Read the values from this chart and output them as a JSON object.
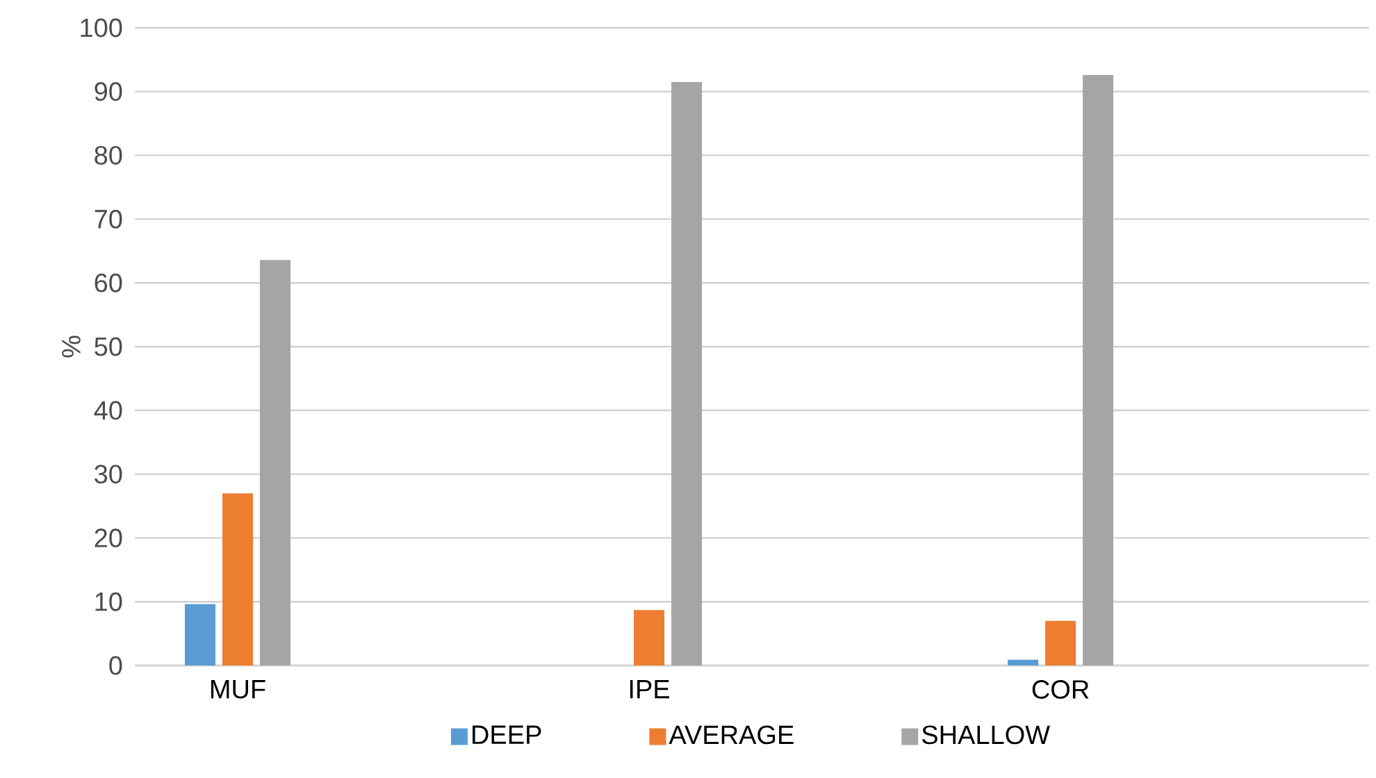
{
  "chart_data": {
    "type": "bar",
    "ylabel": "%",
    "categories": [
      "MUF",
      "IPE",
      "COR"
    ],
    "series": [
      {
        "name": "DEEP",
        "color": "#5b9bd5",
        "values": [
          9.6,
          null,
          0.9
        ]
      },
      {
        "name": "AVERAGE",
        "color": "#ed7d31",
        "values": [
          27.0,
          8.7,
          7.0
        ]
      },
      {
        "name": "SHALLOW",
        "color": "#a5a5a5",
        "values": [
          63.6,
          91.5,
          92.6
        ]
      }
    ],
    "ylim": [
      0,
      100
    ],
    "yticks": [
      0,
      10,
      20,
      30,
      40,
      50,
      60,
      70,
      80,
      90,
      100
    ],
    "grid": "y",
    "legend": "bottom"
  }
}
